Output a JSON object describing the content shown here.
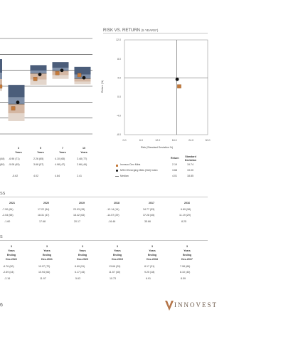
{
  "scatter": {
    "title": "RISK VS. RETURN",
    "title_suffix": "(5 YEARS*)",
    "ylabel": "Return (%)",
    "xlabel": "Risk (Standard Deviation %)",
    "yticks": [
      "12.0",
      "8.0",
      "4.0",
      "0.0",
      "-4.0",
      "-8.0"
    ],
    "xticks": [
      "0.0",
      "6.0",
      "12.0",
      "18.0",
      "24.0",
      "30.0"
    ]
  },
  "legend": {
    "col_return": "Return",
    "col_std": "Standard Deviation",
    "rows": [
      {
        "label": "Invesco Dev Mkts",
        "return": "2.19",
        "std": "19.74"
      },
      {
        "label": "MSCI Emerging Mkts (Net) Index",
        "return": "3.68",
        "std": "19.00"
      },
      {
        "label": "Median",
        "return": "4.01",
        "std": "18.85"
      }
    ]
  },
  "bar_chart": {
    "periods": [
      {
        "l1": "3",
        "l2": "Years"
      },
      {
        "l1": "5",
        "l2": "Years"
      },
      {
        "l1": "7",
        "l2": "Years"
      },
      {
        "l1": "10",
        "l2": "Years"
      }
    ],
    "rows": [
      {
        "partial": "(48)",
        "cells": [
          "-6.96 (71)",
          "2.26 (85)",
          "4.10 (65)",
          "3.48 (77)"
        ]
      },
      {
        "partial": "(80)",
        "cells": [
          "-5.08 (45)",
          "3.68 (57)",
          "4.98 (47)",
          "2.66 (44)"
        ]
      },
      {
        "partial": "",
        "cells": [
          "-5.62",
          "4.02",
          "4.84",
          "2.41"
        ]
      }
    ]
  },
  "calendar": {
    "title_fragment": "SS",
    "years": [
      "2021",
      "2020",
      "2019",
      "2018",
      "2017",
      "2016"
    ],
    "rows": [
      [
        "-7.50 (84)",
        "17.22 (54)",
        "23.93 (28)",
        "-12.14 (14)",
        "34.77 (53)",
        "6.89 (56)"
      ],
      [
        "-2.54 (58)",
        "18.31 (47)",
        "18.42 (63)",
        "-14.57 (29)",
        "37.28 (45)",
        "11.19 (29)"
      ],
      [
        "-1.60",
        "17.68",
        "20.17",
        "-16.46",
        "35.66",
        "8.25"
      ]
    ]
  },
  "rolling": {
    "title_fragment": "S",
    "headers": [
      {
        "l1": "3",
        "l2": "Years",
        "l3": "Ending",
        "l4": "Dec-2022"
      },
      {
        "l1": "3",
        "l2": "Years",
        "l3": "Ending",
        "l4": "Dec-2021"
      },
      {
        "l1": "3",
        "l2": "Years",
        "l3": "Ending",
        "l4": "Dec-2020"
      },
      {
        "l1": "3",
        "l2": "Years",
        "l3": "Ending",
        "l4": "Dec-2019"
      },
      {
        "l1": "3",
        "l2": "Years",
        "l3": "Ending",
        "l4": "Dec-2018"
      },
      {
        "l1": "3",
        "l2": "Years",
        "l3": "Ending",
        "l4": "Dec-2017"
      }
    ],
    "rows": [
      [
        "-6.76 (90)",
        "10.97 (72)",
        "8.69 (51)",
        "13.66 (29)",
        "8.17 (31)",
        "7.98 (66)"
      ],
      [
        "-2.69 (44)",
        "10.94 (64)",
        "6.17 (44)",
        "11.57 (40)",
        "9.25 (18)",
        "8.10 (40)"
      ],
      [
        "-3.16",
        "11.97",
        "5.63",
        "10.73",
        "6.91",
        "8.59"
      ]
    ]
  },
  "footer": {
    "page_number": "6",
    "logo_text": "INNOVEST"
  },
  "colors": {
    "boxes": [
      "#4b5d7a",
      "#7f8fa8",
      "#d4b7a3",
      "#e3d6cc"
    ],
    "fund": "#c57a3a",
    "benchmark": "#111111"
  },
  "chart_data": [
    {
      "type": "scatter",
      "title": "RISK VS. RETURN",
      "subtitle": "(5 YEARS*)",
      "xlabel": "Risk (Standard Deviation %)",
      "ylabel": "Return (%)",
      "xlim": [
        0,
        30
      ],
      "ylim": [
        -8,
        12
      ],
      "median": {
        "x": 18.85,
        "y": 4.01
      },
      "series": [
        {
          "name": "Invesco Dev Mkts",
          "x": [
            19.74
          ],
          "y": [
            2.19
          ]
        },
        {
          "name": "MSCI Emerging Mkts (Net) Index",
          "x": [
            19.0
          ],
          "y": [
            3.68
          ]
        }
      ]
    },
    {
      "type": "bar",
      "categories": [
        "3 Years",
        "5 Years",
        "7 Years",
        "10 Years"
      ],
      "series": [
        {
          "name": "Invesco Dev Mkts",
          "values": [
            -6.96,
            2.26,
            4.1,
            3.48
          ]
        },
        {
          "name": "MSCI Emerging Mkts (Net) Index",
          "values": [
            -5.08,
            3.68,
            4.98,
            2.66
          ]
        }
      ],
      "median": [
        -5.62,
        4.02,
        4.84,
        2.41
      ]
    }
  ]
}
